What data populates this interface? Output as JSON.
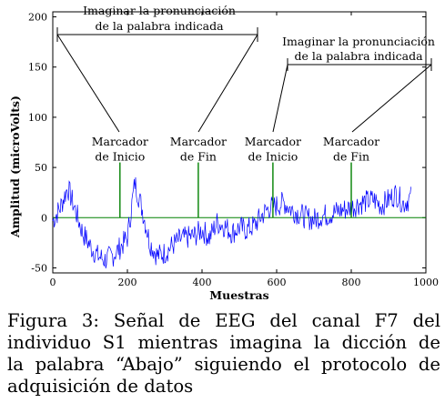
{
  "chart_data": {
    "type": "line",
    "xlabel": "Muestras",
    "ylabel": "Amplitud (microVolts)",
    "xlim": [
      0,
      1000
    ],
    "ylim": [
      -55,
      205
    ],
    "xticks": [
      0,
      200,
      400,
      600,
      800,
      1000
    ],
    "yticks": [
      -50,
      0,
      50,
      100,
      150,
      200
    ],
    "grid": false,
    "series": [
      {
        "color": "#0000ff",
        "x": [
          0,
          20,
          40,
          60,
          80,
          100,
          120,
          140,
          160,
          180,
          200,
          220,
          240,
          260,
          280,
          300,
          320,
          340,
          360,
          380,
          400,
          420,
          440,
          460,
          480,
          500,
          520,
          540,
          560,
          580,
          600,
          620,
          640,
          660,
          680,
          700,
          720,
          740,
          760,
          780,
          800,
          820,
          840,
          860,
          880,
          900,
          920,
          940,
          960
        ],
        "values": [
          -3,
          10,
          30,
          8,
          -15,
          -28,
          -38,
          -42,
          -38,
          -30,
          -20,
          35,
          8,
          -25,
          -38,
          -35,
          -28,
          -22,
          -20,
          -18,
          -12,
          -20,
          -5,
          -8,
          -15,
          -10,
          -12,
          -8,
          2,
          10,
          12,
          15,
          8,
          4,
          0,
          -2,
          2,
          3,
          6,
          8,
          10,
          14,
          16,
          18,
          12,
          18,
          24,
          14,
          20
        ]
      }
    ],
    "markers": [
      {
        "x": 180,
        "label_line1": "Marcador",
        "label_line2": "de Inicio",
        "color": "#008000"
      },
      {
        "x": 390,
        "label_line1": "Marcador",
        "label_line2": "de Fin",
        "color": "#008000"
      },
      {
        "x": 590,
        "label_line1": "Marcador",
        "label_line2": "de Inicio",
        "color": "#008000"
      },
      {
        "x": 800,
        "label_line1": "Marcador",
        "label_line2": "de Fin",
        "color": "#008000"
      }
    ],
    "annotations": [
      {
        "line1": "Imaginar la pronunciación",
        "line2": "de la palabra indicada"
      },
      {
        "line1": "Imaginar la pronunciación",
        "line2": "de la palabra indicada"
      }
    ]
  },
  "caption": {
    "line1": "Figura 3: Señal de EEG del canal F7 del",
    "line2": "individuo S1 mientras imagina la dicción de",
    "line3": "la palabra “Abajo” siguiendo el protocolo de",
    "line4": "adquisición de datos"
  }
}
